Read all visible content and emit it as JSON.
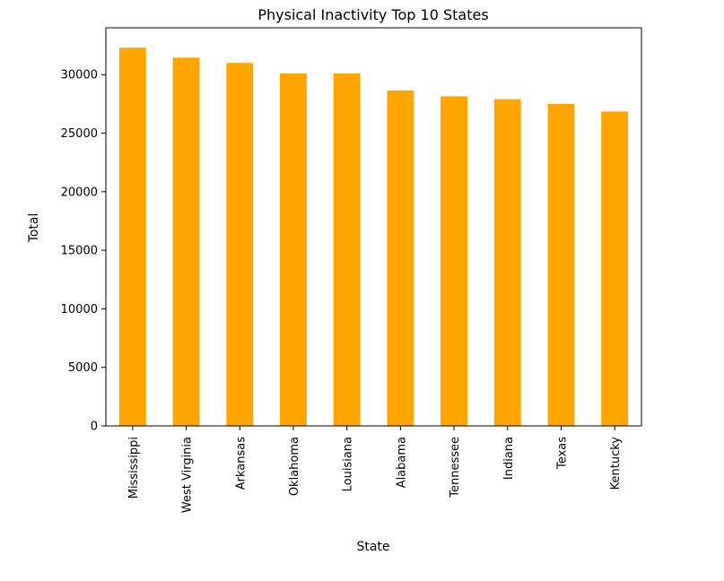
{
  "chart_data": {
    "type": "bar",
    "title": "Physical Inactivity Top 10 States",
    "xlabel": "State",
    "ylabel": "Total",
    "categories": [
      "Mississippi",
      "West Virginia",
      "Arkansas",
      "Oklahoma",
      "Louisiana",
      "Alabama",
      "Tennessee",
      "Indiana",
      "Texas",
      "Kentucky"
    ],
    "values": [
      32300,
      31450,
      31000,
      30100,
      30100,
      28650,
      28150,
      27900,
      27500,
      26850
    ],
    "ylim": [
      0,
      34000
    ],
    "yticks": [
      0,
      5000,
      10000,
      15000,
      20000,
      25000,
      30000
    ],
    "bar_color": "#FFA500",
    "grid": false,
    "legend": "none"
  }
}
